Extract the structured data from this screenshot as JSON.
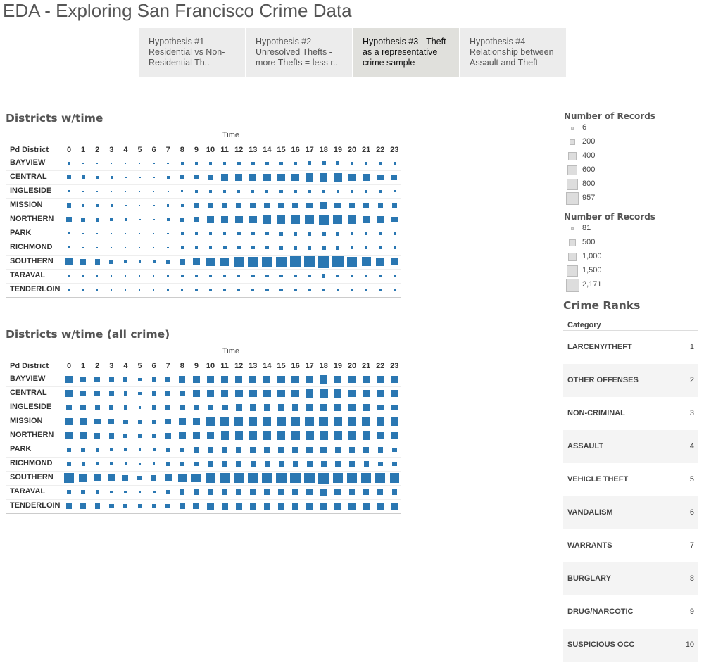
{
  "app": {
    "title": "EDA - Exploring San Francisco Crime Data"
  },
  "tabs": [
    {
      "label": "Hypothesis #1 - Residential vs Non-Residential Th..",
      "active": false
    },
    {
      "label": "Hypothesis #2 - Unresolved Thefts - more Thefts = less r..",
      "active": false
    },
    {
      "label": "Hypothesis #3 - Theft as a representative crime sample",
      "active": true
    },
    {
      "label": "Hypothesis #4 - Relationship between Assault and Theft",
      "active": false
    }
  ],
  "colors": {
    "mark": "#2a77b2",
    "legend_swatch": "#dddddd",
    "tab_active": "#e0e0dc",
    "tab": "#ececec"
  },
  "chart_data": [
    {
      "type": "heatmap",
      "title": "Districts w/time",
      "xlabel": "Time",
      "ylabel": "Pd District",
      "x": [
        "0",
        "1",
        "2",
        "3",
        "4",
        "5",
        "6",
        "7",
        "8",
        "9",
        "10",
        "11",
        "12",
        "13",
        "14",
        "15",
        "16",
        "17",
        "18",
        "19",
        "20",
        "21",
        "22",
        "23"
      ],
      "y": [
        "BAYVIEW",
        "CENTRAL",
        "INGLESIDE",
        "MISSION",
        "NORTHERN",
        "PARK",
        "RICHMOND",
        "SOUTHERN",
        "TARAVAL",
        "TENDERLOIN"
      ],
      "size_measure": "Number of Records",
      "size_range": [
        6,
        957
      ],
      "values": [
        [
          40,
          25,
          15,
          10,
          8,
          6,
          12,
          25,
          45,
          55,
          60,
          65,
          75,
          75,
          70,
          70,
          80,
          90,
          100,
          85,
          60,
          55,
          40,
          35
        ],
        [
          120,
          85,
          60,
          40,
          25,
          15,
          20,
          50,
          100,
          150,
          250,
          300,
          330,
          350,
          350,
          360,
          400,
          420,
          430,
          420,
          350,
          280,
          250,
          200
        ],
        [
          30,
          20,
          12,
          10,
          8,
          6,
          8,
          18,
          30,
          40,
          45,
          45,
          50,
          50,
          50,
          55,
          60,
          70,
          75,
          65,
          50,
          45,
          35,
          30
        ],
        [
          90,
          70,
          50,
          35,
          20,
          12,
          15,
          35,
          70,
          110,
          160,
          180,
          200,
          200,
          210,
          220,
          240,
          260,
          280,
          260,
          220,
          190,
          170,
          150
        ],
        [
          200,
          130,
          90,
          60,
          35,
          20,
          25,
          60,
          120,
          180,
          280,
          350,
          380,
          400,
          420,
          440,
          480,
          550,
          620,
          560,
          420,
          360,
          300,
          250
        ],
        [
          30,
          20,
          12,
          8,
          6,
          6,
          8,
          20,
          40,
          55,
          70,
          75,
          80,
          80,
          80,
          85,
          90,
          95,
          100,
          90,
          70,
          60,
          50,
          40
        ],
        [
          30,
          20,
          15,
          10,
          8,
          6,
          8,
          20,
          40,
          60,
          75,
          80,
          80,
          80,
          80,
          85,
          90,
          100,
          100,
          90,
          75,
          60,
          50,
          40
        ],
        [
          280,
          220,
          180,
          120,
          70,
          40,
          50,
          100,
          200,
          300,
          420,
          500,
          600,
          640,
          680,
          700,
          760,
          850,
          957,
          920,
          700,
          560,
          460,
          380
        ],
        [
          40,
          30,
          20,
          12,
          8,
          6,
          10,
          20,
          40,
          50,
          60,
          60,
          65,
          65,
          60,
          60,
          70,
          80,
          85,
          80,
          65,
          55,
          45,
          40
        ],
        [
          40,
          30,
          20,
          12,
          8,
          6,
          10,
          20,
          35,
          45,
          50,
          55,
          60,
          60,
          60,
          60,
          65,
          70,
          75,
          70,
          60,
          55,
          45,
          40
        ]
      ]
    },
    {
      "type": "heatmap",
      "title": "Districts w/time (all crime)",
      "xlabel": "Time",
      "ylabel": "Pd District",
      "x": [
        "0",
        "1",
        "2",
        "3",
        "4",
        "5",
        "6",
        "7",
        "8",
        "9",
        "10",
        "11",
        "12",
        "13",
        "14",
        "15",
        "16",
        "17",
        "18",
        "19",
        "20",
        "21",
        "22",
        "23"
      ],
      "y": [
        "BAYVIEW",
        "CENTRAL",
        "INGLESIDE",
        "MISSION",
        "NORTHERN",
        "PARK",
        "RICHMOND",
        "SOUTHERN",
        "TARAVAL",
        "TENDERLOIN"
      ],
      "size_measure": "Number of Records",
      "size_range": [
        81,
        2171
      ],
      "values": [
        [
          900,
          700,
          600,
          500,
          350,
          200,
          300,
          550,
          800,
          900,
          950,
          950,
          1000,
          1000,
          1000,
          1050,
          1100,
          1150,
          1200,
          1150,
          1050,
          1000,
          950,
          900
        ],
        [
          900,
          650,
          550,
          450,
          300,
          200,
          250,
          450,
          700,
          850,
          1000,
          1050,
          1100,
          1100,
          1100,
          1100,
          1150,
          1250,
          1300,
          1200,
          1100,
          1050,
          1000,
          950
        ],
        [
          750,
          550,
          450,
          350,
          250,
          150,
          250,
          450,
          650,
          700,
          750,
          750,
          800,
          800,
          800,
          850,
          900,
          950,
          1000,
          950,
          850,
          800,
          750,
          700
        ],
        [
          1100,
          850,
          750,
          600,
          400,
          250,
          350,
          650,
          950,
          1100,
          1250,
          1300,
          1400,
          1350,
          1350,
          1400,
          1450,
          1500,
          1550,
          1450,
          1350,
          1300,
          1250,
          1200
        ],
        [
          1000,
          800,
          650,
          550,
          350,
          250,
          300,
          600,
          900,
          1000,
          1150,
          1200,
          1250,
          1250,
          1300,
          1300,
          1350,
          1450,
          1500,
          1400,
          1300,
          1200,
          1150,
          1100
        ],
        [
          400,
          300,
          250,
          200,
          150,
          100,
          150,
          300,
          450,
          500,
          550,
          600,
          600,
          600,
          600,
          650,
          700,
          750,
          750,
          700,
          600,
          550,
          500,
          450
        ],
        [
          350,
          250,
          200,
          150,
          100,
          81,
          120,
          250,
          400,
          450,
          500,
          500,
          550,
          550,
          550,
          550,
          600,
          650,
          650,
          600,
          550,
          500,
          450,
          400
        ],
        [
          1700,
          1300,
          1150,
          900,
          650,
          450,
          550,
          900,
          1400,
          1600,
          1800,
          1900,
          2000,
          2000,
          2000,
          2000,
          2050,
          2100,
          2171,
          2100,
          1950,
          1850,
          1800,
          1750
        ],
        [
          450,
          350,
          250,
          200,
          150,
          100,
          150,
          300,
          500,
          550,
          600,
          600,
          650,
          650,
          650,
          650,
          700,
          750,
          800,
          750,
          650,
          600,
          550,
          500
        ],
        [
          750,
          600,
          500,
          450,
          350,
          250,
          300,
          450,
          650,
          750,
          800,
          800,
          850,
          850,
          850,
          850,
          900,
          950,
          950,
          900,
          850,
          850,
          800,
          800
        ]
      ]
    }
  ],
  "legend1": {
    "title": "Number of Records",
    "items": [
      {
        "label": "6",
        "v": 6
      },
      {
        "label": "200",
        "v": 200
      },
      {
        "label": "400",
        "v": 400
      },
      {
        "label": "600",
        "v": 600
      },
      {
        "label": "800",
        "v": 800
      },
      {
        "label": "957",
        "v": 957
      }
    ]
  },
  "legend2": {
    "title": "Number of Records",
    "items": [
      {
        "label": "81",
        "v": 81
      },
      {
        "label": "500",
        "v": 500
      },
      {
        "label": "1,000",
        "v": 1000
      },
      {
        "label": "1,500",
        "v": 1500
      },
      {
        "label": "2,171",
        "v": 2171
      }
    ]
  },
  "ranks": {
    "title": "Crime Ranks",
    "column_header": "Category",
    "rows": [
      {
        "category": "LARCENY/THEFT",
        "rank": "1"
      },
      {
        "category": "OTHER OFFENSES",
        "rank": "2"
      },
      {
        "category": "NON-CRIMINAL",
        "rank": "3"
      },
      {
        "category": "ASSAULT",
        "rank": "4"
      },
      {
        "category": "VEHICLE THEFT",
        "rank": "5"
      },
      {
        "category": "VANDALISM",
        "rank": "6"
      },
      {
        "category": "WARRANTS",
        "rank": "7"
      },
      {
        "category": "BURGLARY",
        "rank": "8"
      },
      {
        "category": "DRUG/NARCOTIC",
        "rank": "9"
      },
      {
        "category": "SUSPICIOUS OCC",
        "rank": "10"
      }
    ]
  }
}
